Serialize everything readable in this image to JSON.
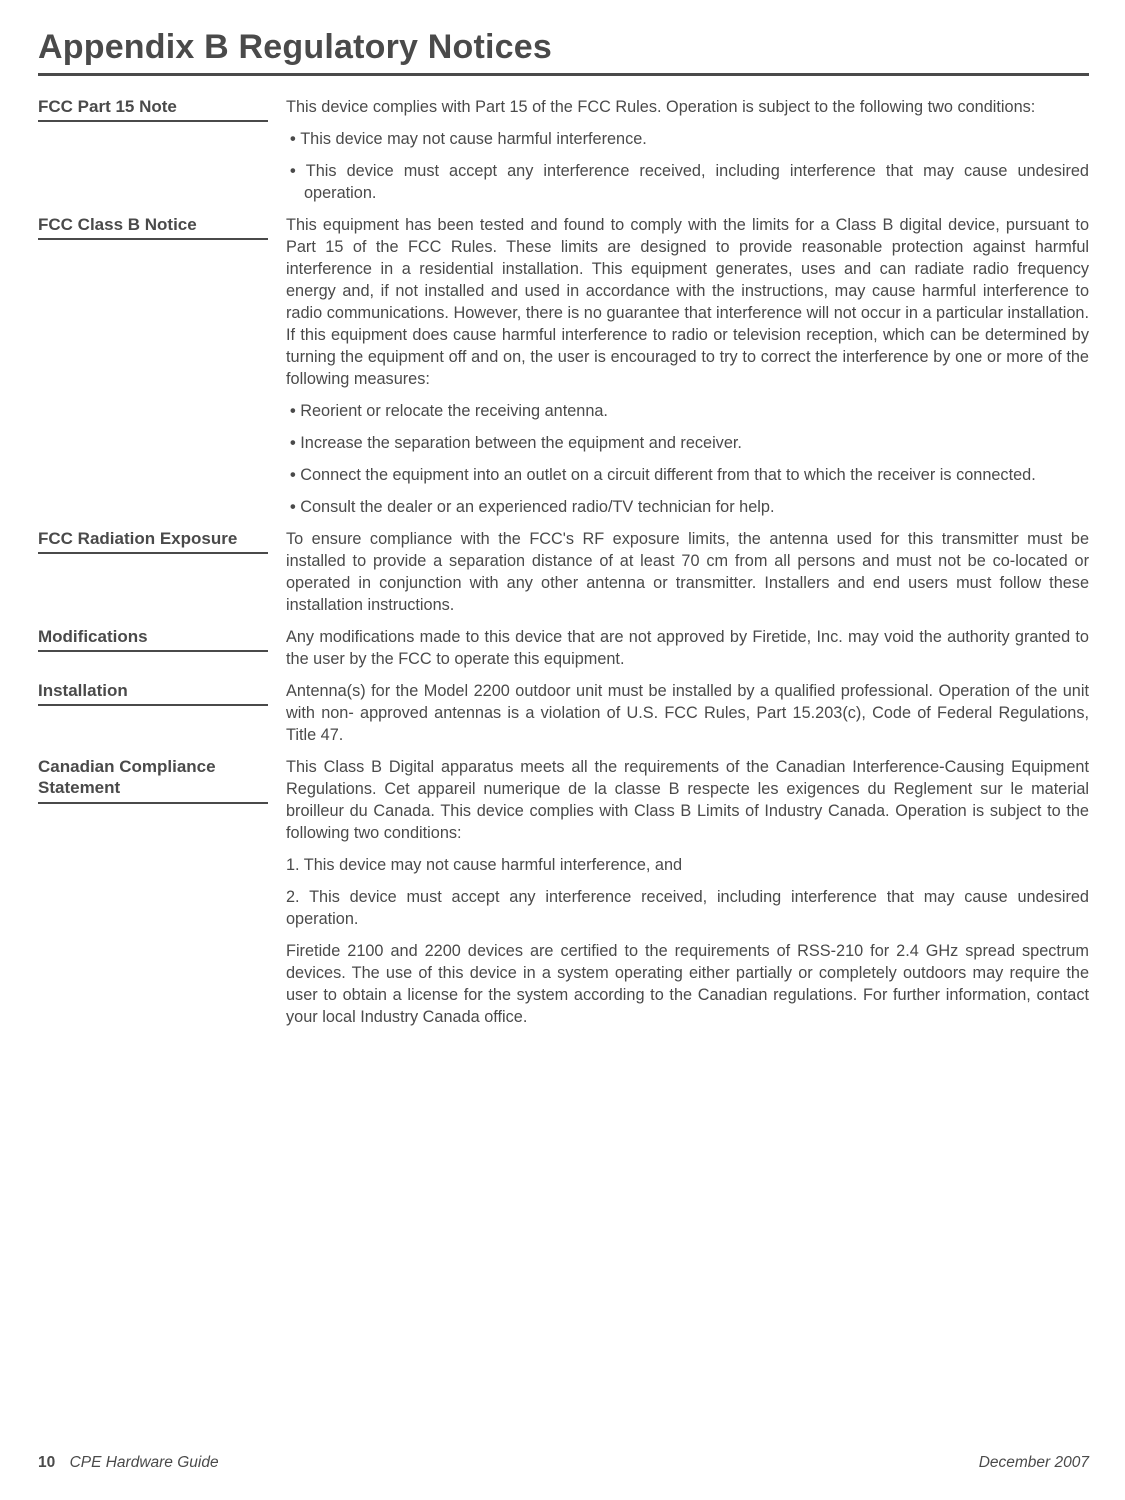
{
  "title": "Appendix B Regulatory Notices",
  "sections": [
    {
      "label": "FCC Part 15 Note",
      "paras": [
        "This device complies with Part 15 of the FCC Rules. Operation is subject to the following two conditions:"
      ],
      "bullets": [
        "This device may not cause harmful interference.",
        "This device must accept any interference received, including interference that may cause undesired operation."
      ]
    },
    {
      "label": "FCC Class B Notice",
      "paras": [
        "This equipment has been tested and found to comply with the limits for a Class B digital device, pursuant to Part 15 of the FCC Rules. These limits are designed to provide reasonable protection against harmful interference in a residential installation. This equipment generates, uses and can radiate radio frequency energy and, if not installed and used in accordance with the instructions, may cause harmful interference to radio communications. However, there is no guarantee that interference will not occur in a particular installation. If this equipment does cause harmful interference to radio or television reception, which can be determined by turning the equipment off and on, the user is encouraged to try to correct the interference by one or more of the following measures:"
      ],
      "bullets": [
        "Reorient or relocate the receiving antenna.",
        "Increase the separation between the equipment and receiver.",
        "Connect the equipment into an outlet on a circuit different from that to which the receiver is connected.",
        "Consult the dealer or an experienced radio/TV technician for help."
      ]
    },
    {
      "label": "FCC Radiation Exposure",
      "paras": [
        "To ensure compliance with the FCC's RF exposure limits, the antenna used for this transmitter must be installed to provide a separation distance of at least 70 cm from all persons and must not be co-located or operated in conjunction with any other antenna or transmitter. Installers and end users must follow these installation instructions."
      ],
      "bullets": []
    },
    {
      "label": "Modifications",
      "paras": [
        "Any modifications made to this device that are not approved by Firetide, Inc. may void the authority granted to the user by the FCC to operate this equipment."
      ],
      "bullets": []
    },
    {
      "label": "Installation",
      "paras": [
        "Antenna(s) for the Model 2200 outdoor unit must be installed by a qualified professional. Operation of the unit with non- approved antennas is a violation of U.S. FCC Rules, Part 15.203(c), Code of Federal Regulations, Title 47."
      ],
      "bullets": []
    },
    {
      "label": "Canadian Compliance Statement",
      "paras": [
        "This Class B Digital apparatus meets all the requirements of the Canadian Interference-Causing Equipment Regulations. Cet appareil numerique de la classe B respecte les exigences du Reglement sur le material broilleur du Canada. This device complies with Class B Limits of Industry Canada. Operation is subject to the following two conditions:",
        "1. This device may not cause harmful interference, and",
        "2. This device must accept any interference received, including interference that may cause undesired operation.",
        "Firetide 2100 and 2200 devices are certified to the requirements of RSS-210 for 2.4 GHz spread spectrum devices. The use of this device in a system operating either partially or completely outdoors may require the user to obtain a license for the system according to the Canadian regulations. For further information, contact your local Industry Canada office."
      ],
      "bullets": []
    }
  ],
  "footer": {
    "page": "10",
    "guide": "CPE Hardware Guide",
    "date": "December 2007"
  }
}
